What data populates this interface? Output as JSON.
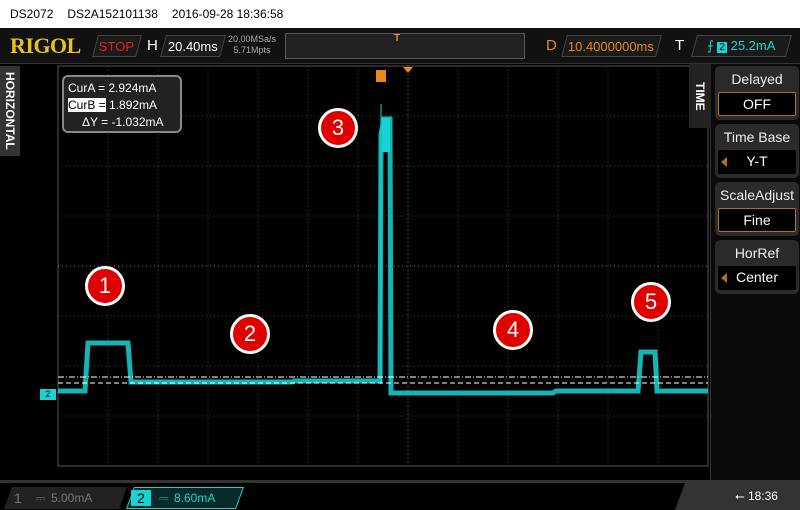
{
  "titlebar": {
    "model": "DS2072",
    "serial": "DS2A152101138",
    "datetime": "2016-09-28 18:36:58"
  },
  "topbar": {
    "logo": "RIGOL",
    "run_state": "STOP",
    "h_label": "H",
    "timebase": "20.40ms",
    "sample_rate": "20.00MSa/s",
    "mem_depth": "5.71Mpts",
    "trigger_marker": "T",
    "delay_label": "D",
    "delay": "10.4000000ms",
    "trig_label": "T",
    "trig_channel": "2",
    "trig_level": "25.2mA"
  },
  "left_tab": "HORIZONTAL",
  "menu": {
    "tab": "TIME",
    "items": [
      {
        "title": "Delayed",
        "value": "OFF",
        "selected": true,
        "arrow": false
      },
      {
        "title": "Time Base",
        "value": "Y-T",
        "selected": false,
        "arrow": true
      },
      {
        "title": "ScaleAdjust",
        "value": "Fine",
        "selected": true,
        "arrow": false
      },
      {
        "title": "HorRef",
        "value": "Center",
        "selected": false,
        "arrow": true
      }
    ]
  },
  "cursors": {
    "a_label": "CurA =",
    "a_value": "2.924mA",
    "b_label": "CurB =",
    "b_value": "1.892mA",
    "dy_label": "ΔY =",
    "dy_value": "-1.032mA"
  },
  "annotations": [
    "1",
    "2",
    "3",
    "4",
    "5"
  ],
  "channels": [
    {
      "num": "1",
      "coupling": "⎓",
      "scale": "5.00mA",
      "active": false
    },
    {
      "num": "2",
      "coupling": "⎓",
      "scale": "8.60mA",
      "active": true
    }
  ],
  "ch2_marker": "2",
  "status": {
    "usb_icon": "usb-icon",
    "time": "18:36"
  },
  "colors": {
    "ch2": "#19d3d3",
    "accent": "#e88a1a",
    "logo": "#e8c21a",
    "stop": "#e02020"
  }
}
